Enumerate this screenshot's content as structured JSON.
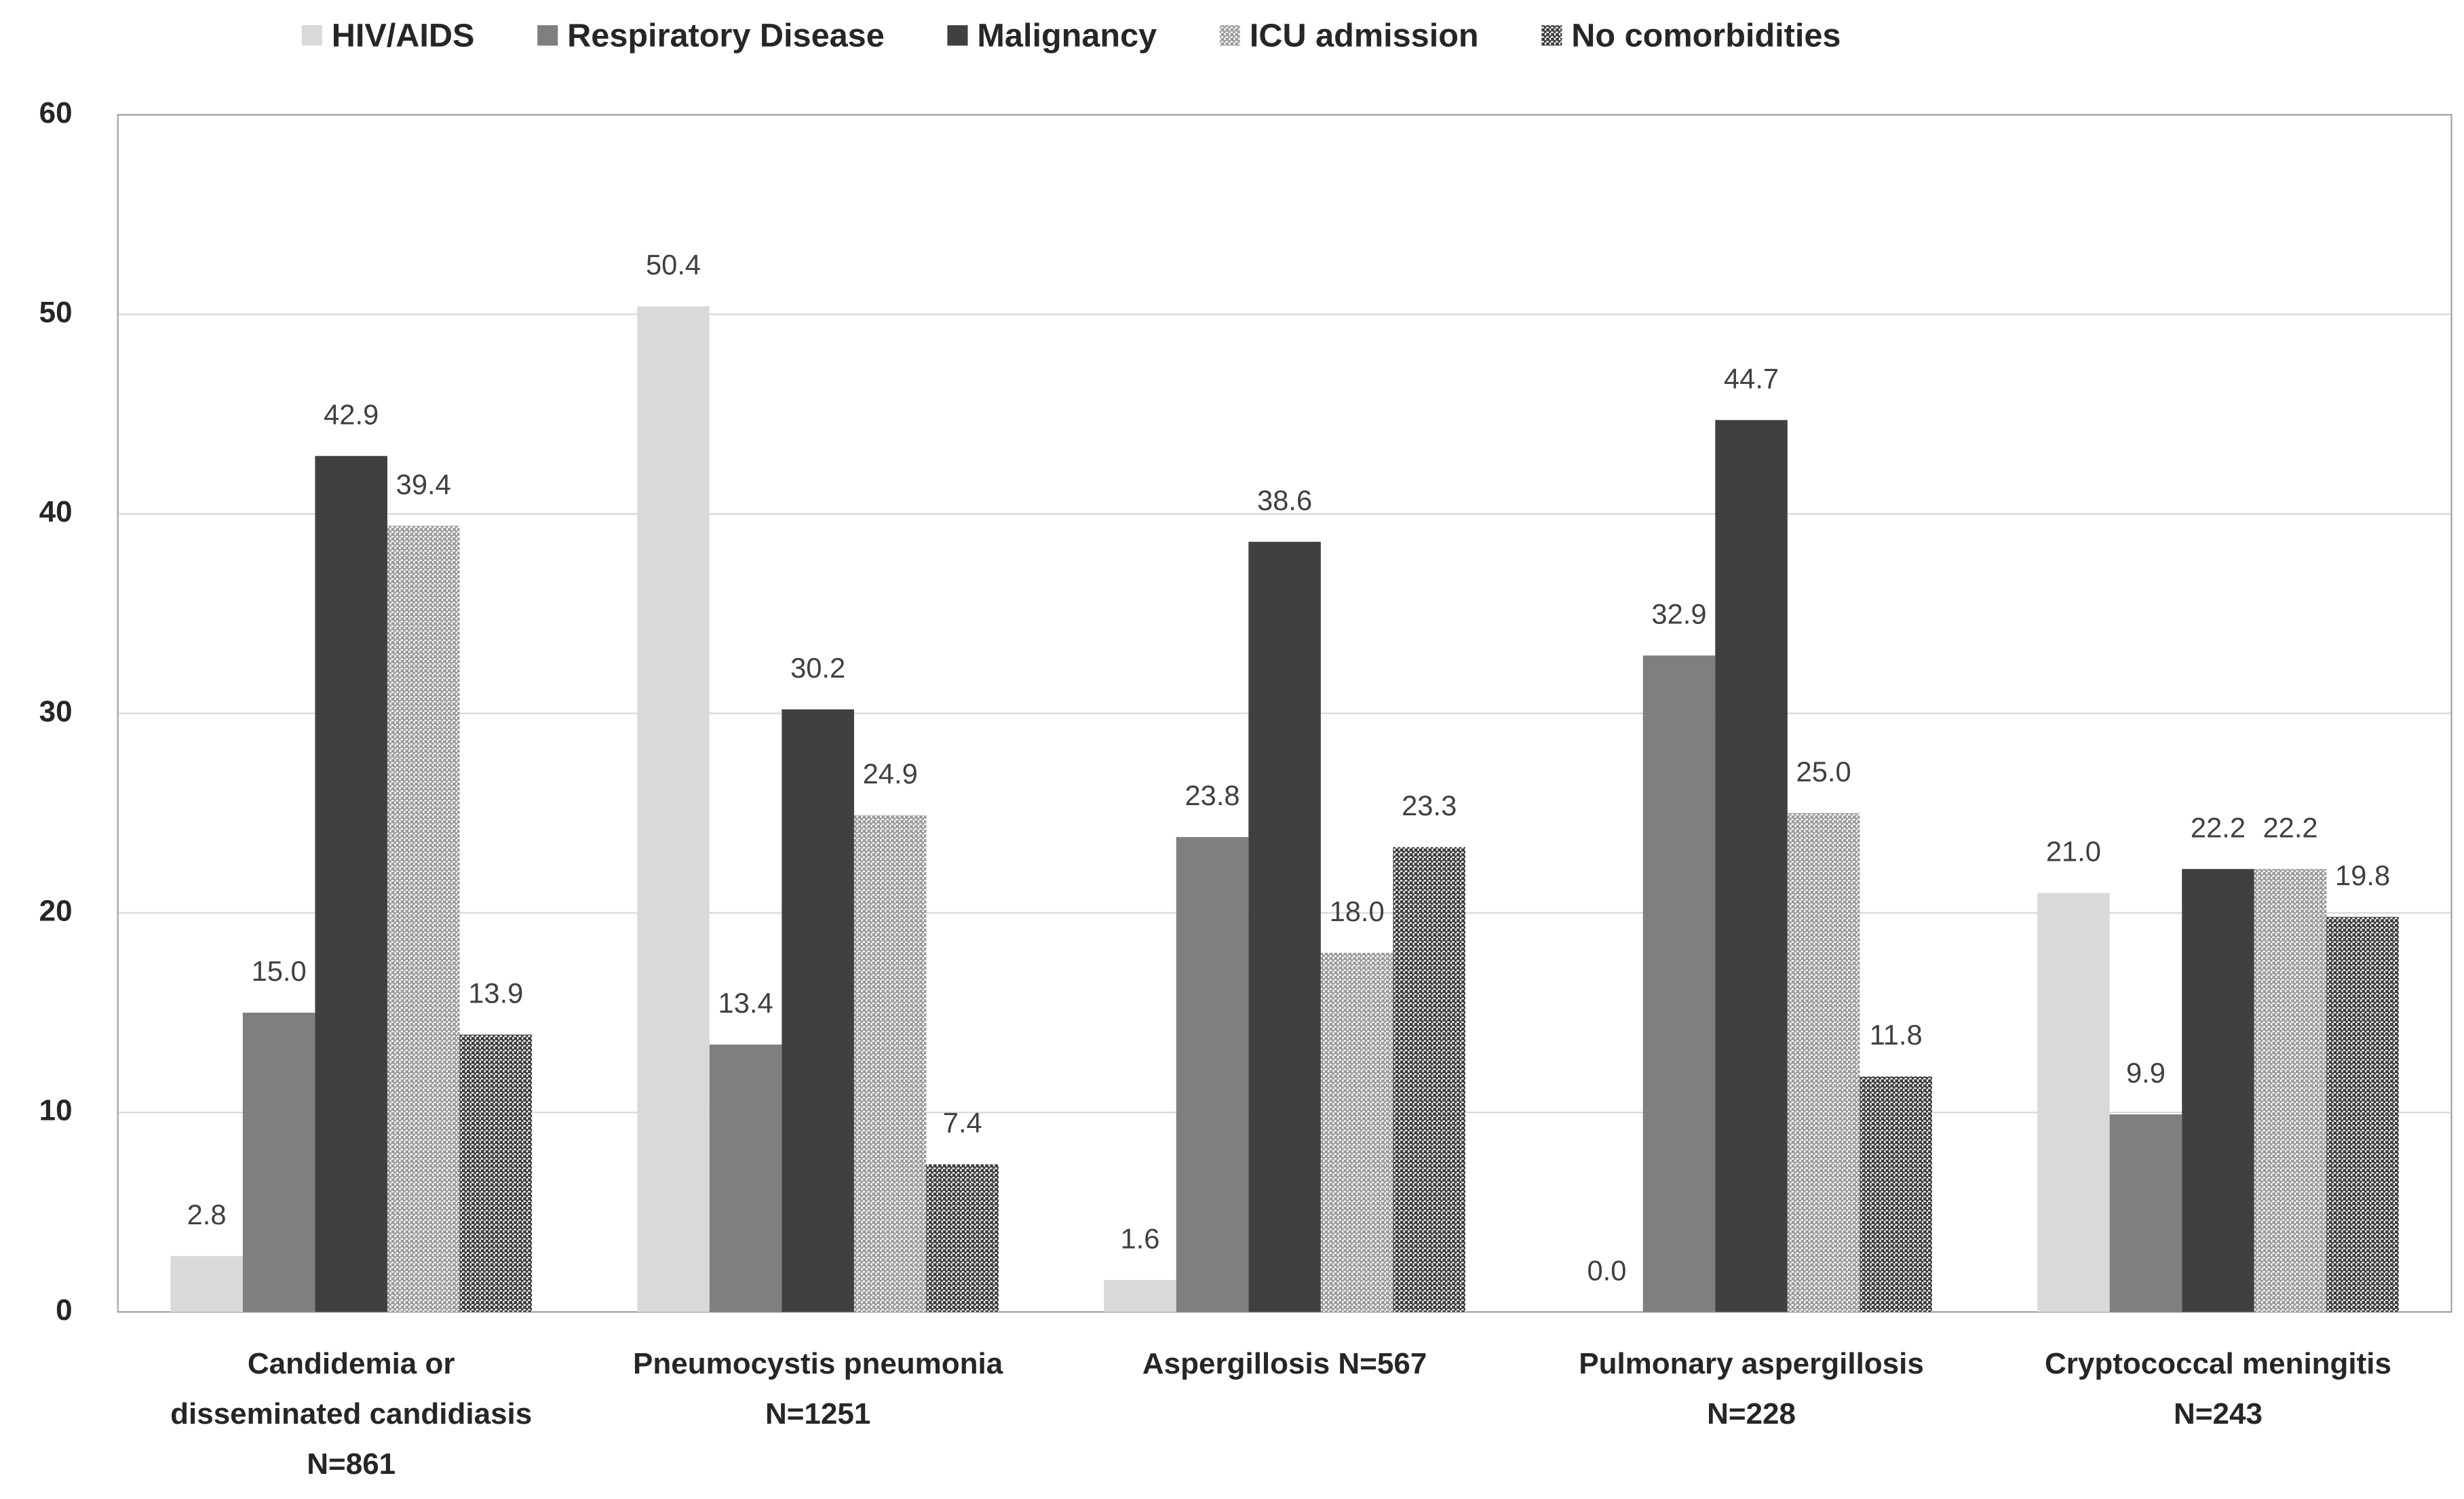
{
  "chart_data": {
    "type": "bar",
    "categories": [
      "Candidemia or\ndisseminated candidiasis\nN=861",
      "Pneumocystis pneumonia\nN=1251",
      "Aspergillosis N=567",
      "Pulmonary aspergillosis\nN=228",
      "Cryptococcal meningitis\nN=243"
    ],
    "series": [
      {
        "name": "HIV/AIDS",
        "color": "#d9d9d9",
        "values": [
          2.8,
          50.4,
          1.6,
          0.0,
          21.0
        ],
        "value_labels": [
          "2.8",
          "50.4",
          "1.6",
          "0.0",
          "21.0"
        ]
      },
      {
        "name": "Respiratory Disease",
        "color": "#7f7f7f",
        "values": [
          15.0,
          13.4,
          23.8,
          32.9,
          9.9
        ],
        "value_labels": [
          "15.0",
          "13.4",
          "23.8",
          "32.9",
          "9.9"
        ]
      },
      {
        "name": "Malignancy",
        "color": "#404040",
        "values": [
          42.9,
          30.2,
          38.6,
          44.7,
          22.2
        ],
        "value_labels": [
          "42.9",
          "30.2",
          "38.6",
          "44.7",
          "22.2"
        ]
      },
      {
        "name": "ICU admission",
        "color": "#9a9a9a",
        "pattern": "dots",
        "values": [
          39.4,
          24.9,
          18.0,
          25.0,
          22.2
        ],
        "value_labels": [
          "39.4",
          "24.9",
          "18.0",
          "25.0",
          "22.2"
        ]
      },
      {
        "name": "No comorbidities",
        "color": "#3a3a3a",
        "pattern": "dots",
        "values": [
          13.9,
          7.4,
          23.3,
          11.8,
          19.8
        ],
        "value_labels": [
          "13.9",
          "7.4",
          "23.3",
          "11.8",
          "19.8"
        ]
      }
    ],
    "ylim": [
      0,
      60
    ],
    "yticks": [
      0,
      10,
      20,
      30,
      40,
      50,
      60
    ],
    "grid": true,
    "legend": "top"
  }
}
